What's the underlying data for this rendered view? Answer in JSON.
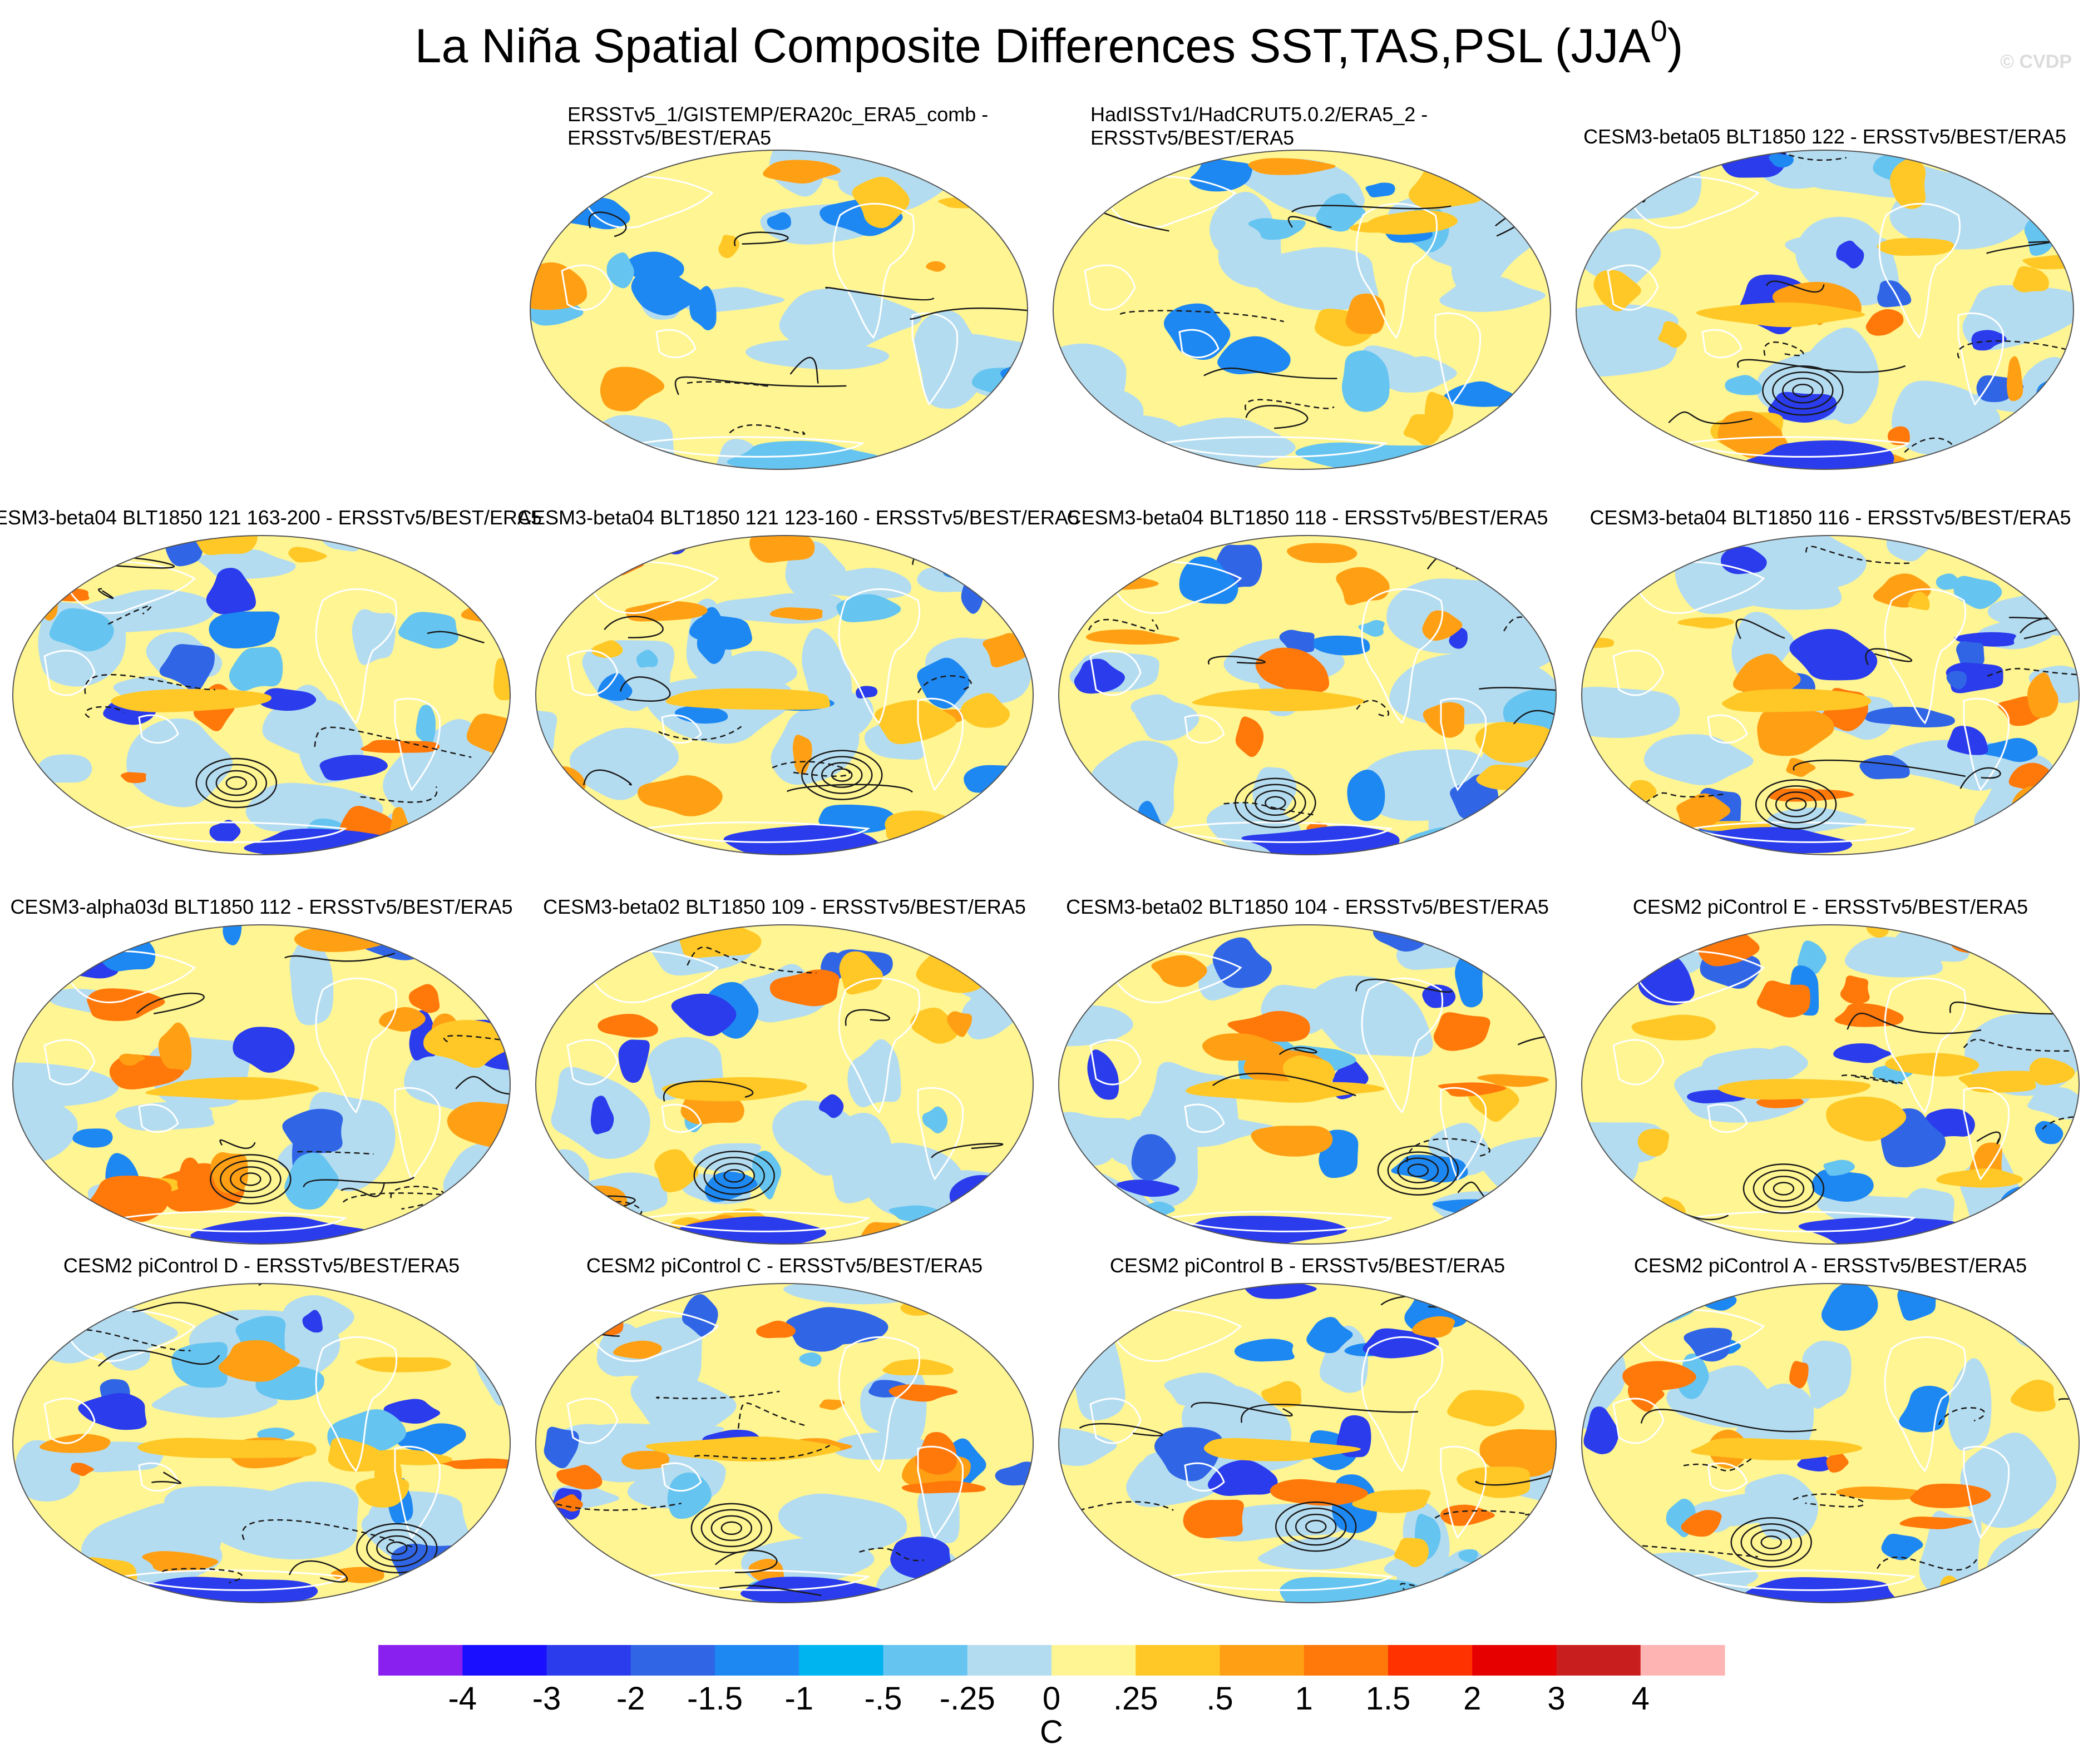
{
  "title": "La Niña Spatial Composite Differences SST,TAS,PSL (JJA",
  "title_superscript": "0",
  "title_close": ")",
  "copyright": "© CVDP",
  "panels": [
    {
      "line1": "ERSSTv5_1/GISTEMP/ERA20c_ERA5_comb -",
      "line2": "ERSSTv5/BEST/ERA5",
      "intensity": 0.55
    },
    {
      "line1": "HadISSTv1/HadCRUT5.0.2/ERA5_2 -",
      "line2": "ERSSTv5/BEST/ERA5",
      "intensity": 0.5
    },
    {
      "label": "CESM3-beta05 BLT1850 122 - ERSSTv5/BEST/ERA5",
      "intensity": 1.0
    },
    {
      "label": "ESM3-beta04 BLT1850 121 163-200 - ERSSTv5/BEST/ERA5",
      "intensity": 1.0
    },
    {
      "label": "CESM3-beta04 BLT1850 121 123-160 - ERSSTv5/BEST/ERA5",
      "intensity": 0.95
    },
    {
      "label": "CESM3-beta04 BLT1850 118 - ERSSTv5/BEST/ERA5",
      "intensity": 0.95
    },
    {
      "label": "CESM3-beta04 BLT1850 116 - ERSSTv5/BEST/ERA5",
      "intensity": 1.0
    },
    {
      "label": "CESM3-alpha03d BLT1850 112 - ERSSTv5/BEST/ERA5",
      "intensity": 0.9
    },
    {
      "label": "CESM3-beta02 BLT1850 109 - ERSSTv5/BEST/ERA5",
      "intensity": 0.95
    },
    {
      "label": "CESM3-beta02 BLT1850 104 - ERSSTv5/BEST/ERA5",
      "intensity": 0.95
    },
    {
      "label": "CESM2 piControl E - ERSSTv5/BEST/ERA5",
      "intensity": 1.0
    },
    {
      "label": "CESM2 piControl D - ERSSTv5/BEST/ERA5",
      "intensity": 0.9
    },
    {
      "label": "CESM2 piControl C - ERSSTv5/BEST/ERA5",
      "intensity": 1.0
    },
    {
      "label": "CESM2 piControl B - ERSSTv5/BEST/ERA5",
      "intensity": 0.8
    },
    {
      "label": "CESM2 piControl A - ERSSTv5/BEST/ERA5",
      "intensity": 1.0
    }
  ],
  "colorbar": {
    "colors": [
      "#8a20f0",
      "#1a10ff",
      "#2a3cec",
      "#3066e6",
      "#1e88f2",
      "#00b4f0",
      "#66c4f0",
      "#b4dcf0",
      "#fff592",
      "#ffc826",
      "#ffa014",
      "#ff780a",
      "#ff3200",
      "#e60000",
      "#c81e1e",
      "#ffb4b4"
    ],
    "labels": [
      "-4",
      "-3",
      "-2",
      "-1.5",
      "-1",
      "-.5",
      "-.25",
      "0",
      ".25",
      ".5",
      "1",
      "1.5",
      "2",
      "3",
      "4"
    ],
    "unit": "C"
  }
}
